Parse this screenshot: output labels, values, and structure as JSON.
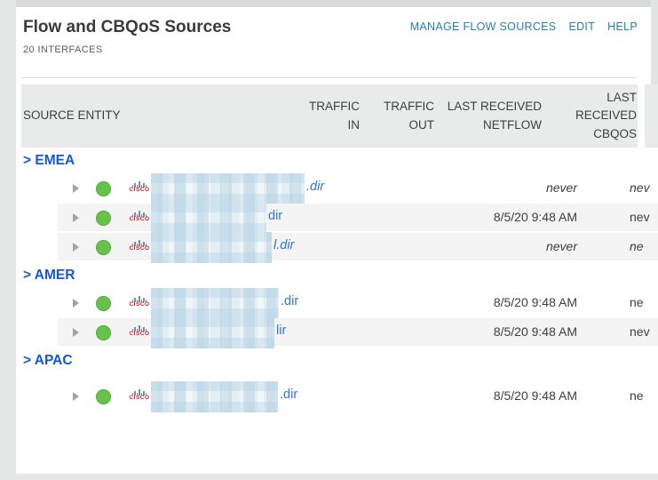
{
  "header": {
    "title": "Flow and CBQoS Sources",
    "subtitle": "20 INTERFACES",
    "links": [
      {
        "label": "MANAGE FLOW SOURCES"
      },
      {
        "label": "EDIT"
      },
      {
        "label": "HELP"
      }
    ]
  },
  "table": {
    "vendor_logo_text": "CISCO",
    "columns": [
      {
        "id": "source_entity",
        "label": "SOURCE ENTITY"
      },
      {
        "id": "traffic_in",
        "label": "TRAFFIC\nIN"
      },
      {
        "id": "traffic_out",
        "label": "TRAFFIC\nOUT"
      },
      {
        "id": "last_received_netflow",
        "label": "LAST RECEIVED\nNETFLOW"
      },
      {
        "id": "last_received_cbqos",
        "label": "LAST\nRECEIVED\nCBQOS"
      }
    ],
    "groups": [
      {
        "label": "> EMEA",
        "rows": [
          {
            "status": "up",
            "vendor_icon": "cisco-logo",
            "name_redacted": true,
            "redacted_width": 173,
            "name_visible": ".dir",
            "italic": true,
            "traffic_in": "",
            "traffic_out": "",
            "last_received_netflow": "never",
            "last_received_cbqos": "nev",
            "striped": false
          },
          {
            "status": "up",
            "vendor_icon": "cisco-logo",
            "name_redacted": true,
            "redacted_width": 130,
            "name_visible": "dir",
            "italic": false,
            "traffic_in": "",
            "traffic_out": "",
            "last_received_netflow": "8/5/20 9:48 AM",
            "last_received_cbqos": "nev",
            "striped": true
          },
          {
            "status": "up",
            "vendor_icon": "cisco-logo",
            "name_redacted": true,
            "redacted_width": 136,
            "name_visible": "l.dir",
            "italic": true,
            "traffic_in": "",
            "traffic_out": "",
            "last_received_netflow": "never",
            "last_received_cbqos": "ne",
            "striped": true
          }
        ]
      },
      {
        "label": "> AMER",
        "rows": [
          {
            "status": "up",
            "vendor_icon": "cisco-logo",
            "name_redacted": true,
            "redacted_width": 144,
            "name_visible": ".dir",
            "italic": false,
            "traffic_in": "",
            "traffic_out": "",
            "last_received_netflow": "8/5/20 9:48 AM",
            "last_received_cbqos": "ne",
            "striped": false
          },
          {
            "status": "up",
            "vendor_icon": "cisco-logo",
            "name_redacted": true,
            "redacted_width": 139,
            "name_visible": "lir",
            "italic": false,
            "traffic_in": "",
            "traffic_out": "",
            "last_received_netflow": "8/5/20 9:48 AM",
            "last_received_cbqos": "nev",
            "striped": true
          }
        ]
      },
      {
        "label": "> APAC",
        "rows": [
          {
            "status": "up",
            "vendor_icon": "cisco-logo",
            "name_redacted": true,
            "redacted_width": 143,
            "name_visible": ".dir",
            "italic": false,
            "traffic_in": "",
            "traffic_out": "",
            "last_received_netflow": "8/5/20 9:48 AM",
            "last_received_cbqos": "ne",
            "striped": false
          }
        ]
      }
    ]
  },
  "colors": {
    "widget_link": "#2381ad",
    "group_link": "#1558d3",
    "device_link": "#3173d1",
    "status_up": "#67c24c",
    "header_bg": "#e9eaea",
    "row_stripe": "#f4f4f4",
    "page_bg": "#e6e7e7"
  }
}
